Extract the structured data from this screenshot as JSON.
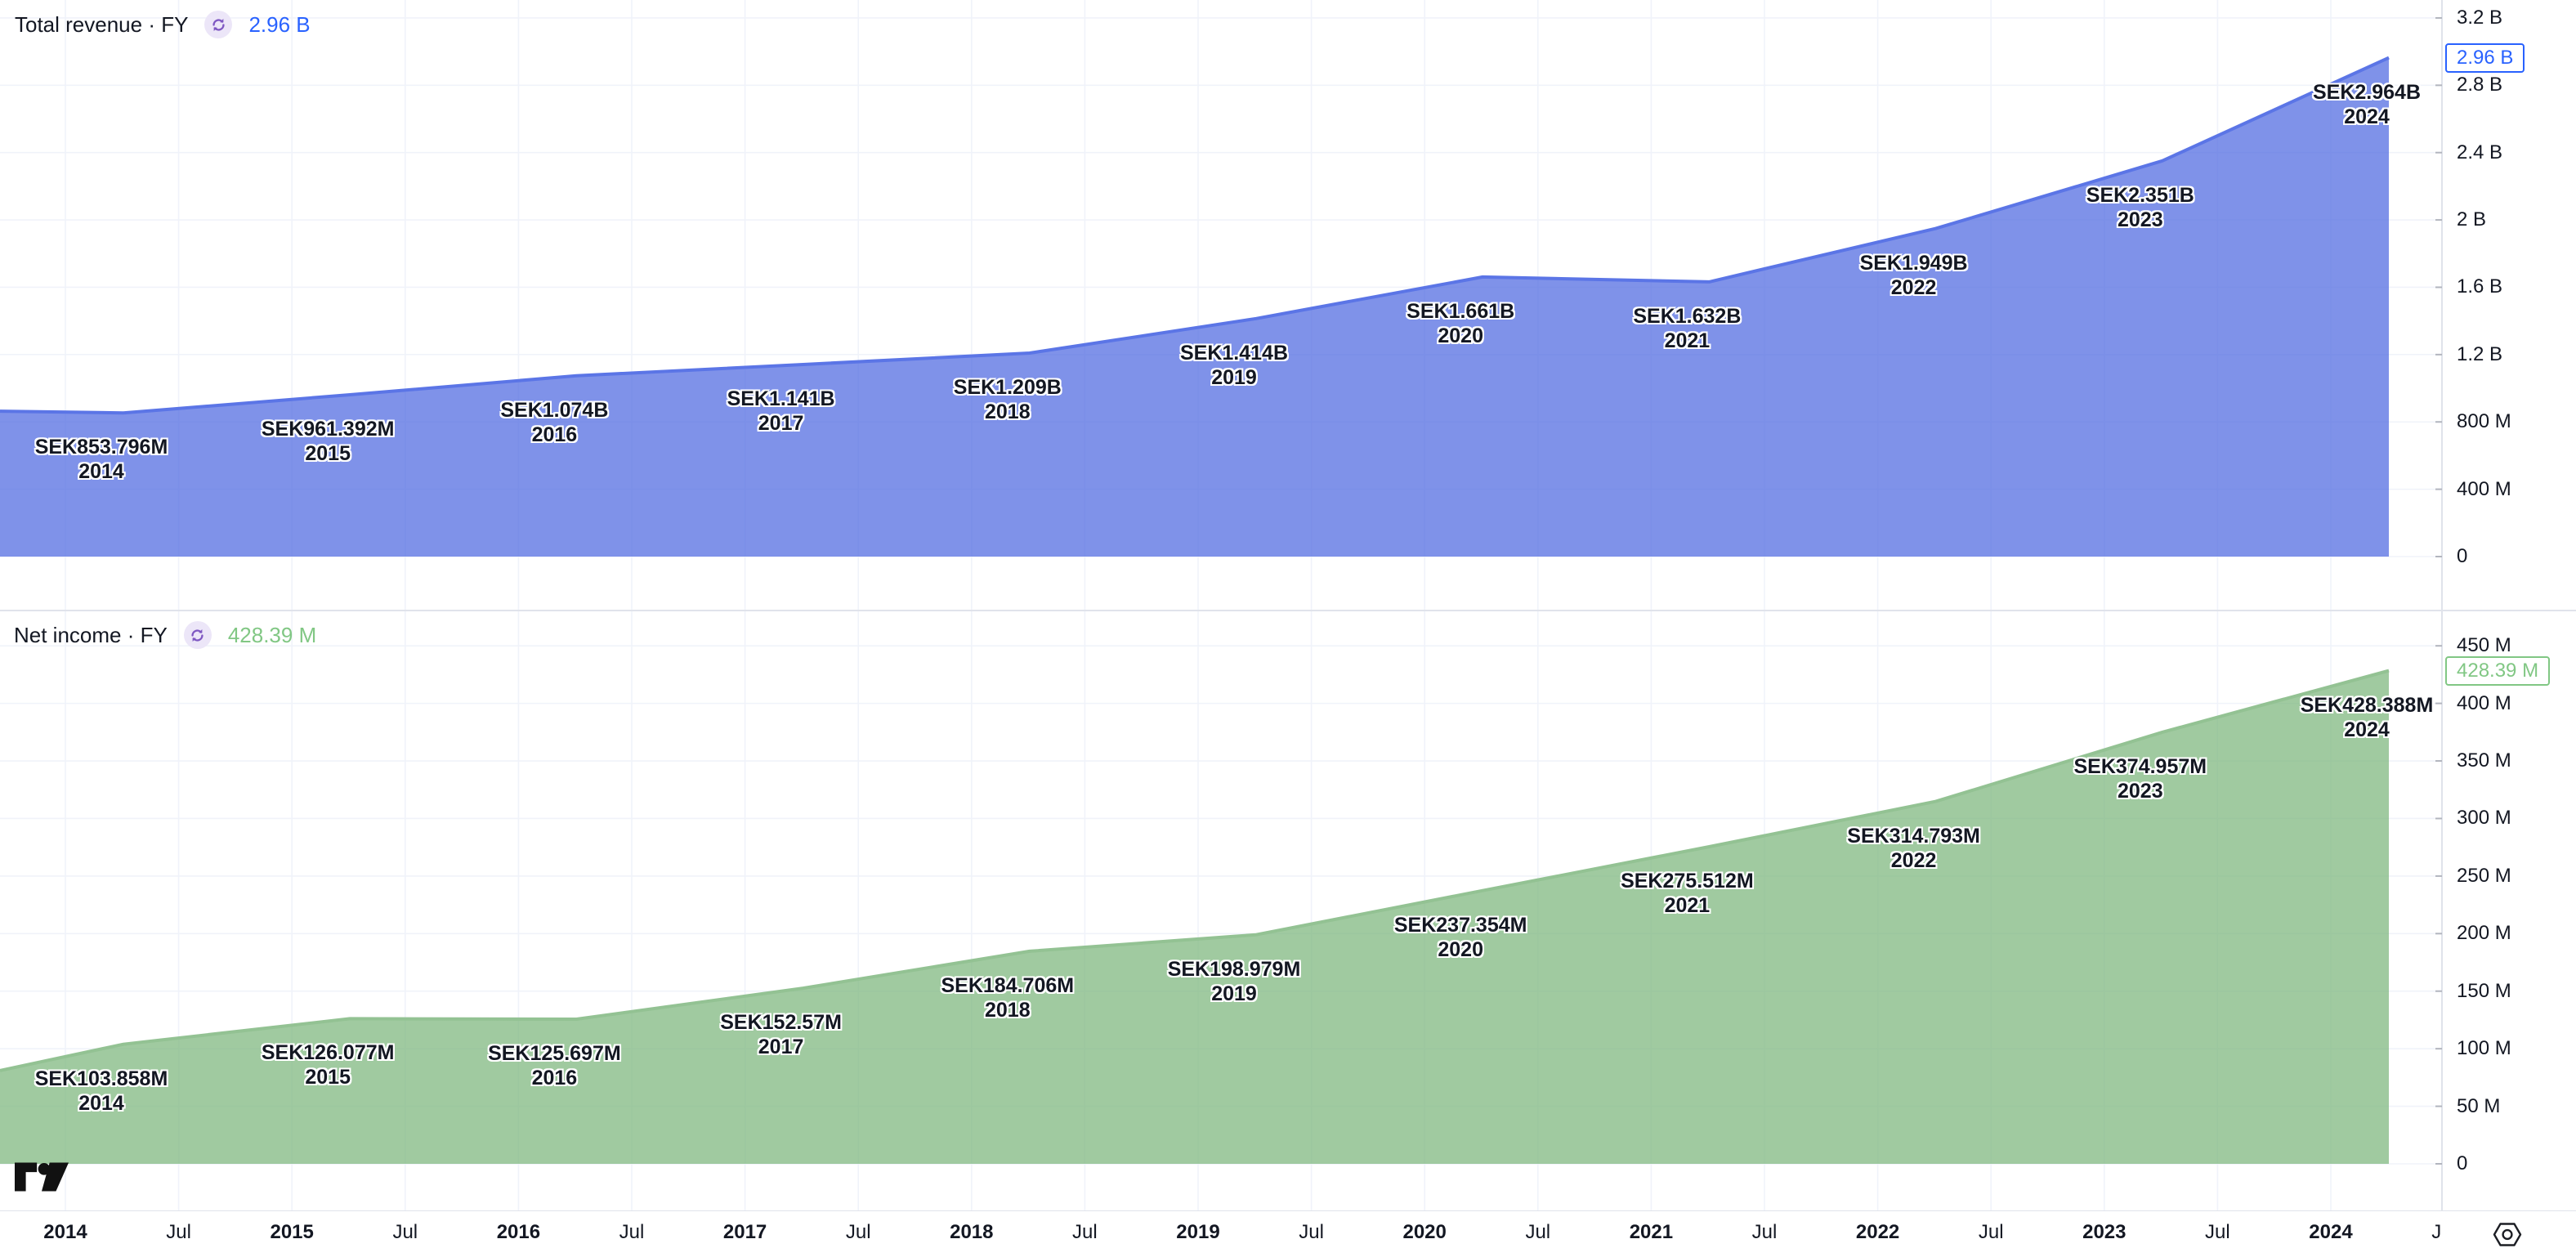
{
  "colors": {
    "background": "#ffffff",
    "grid": "#f0f3fa",
    "separator": "#e0e3eb",
    "axis_text": "#131722",
    "axis_tick": "#b2b5be",
    "annotation_text": "#131722",
    "annotation_halo": "#ffffff",
    "refresh_icon": "#7e57c2",
    "refresh_icon_bg": "#ece6f8",
    "logo": "#111111",
    "gear": "#1c1e24"
  },
  "panels": [
    {
      "title": "Total revenue · FY",
      "value": "2.96 B",
      "badge": "2.96 B"
    },
    {
      "title": "Net income · FY",
      "value": "428.39 M",
      "badge": "428.39 M"
    }
  ],
  "chart_data": [
    {
      "type": "area",
      "title": "Total revenue · FY",
      "unit": "SEK",
      "x_years": [
        2014,
        2015,
        2016,
        2017,
        2018,
        2019,
        2020,
        2021,
        2022,
        2023,
        2024
      ],
      "values_millions": [
        853.796,
        961.392,
        1074,
        1141,
        1209,
        1414,
        1661,
        1632,
        1949,
        2351,
        2964
      ],
      "point_labels": [
        "SEK853.796M",
        "SEK961.392M",
        "SEK1.074B",
        "SEK1.141B",
        "SEK1.209B",
        "SEK1.414B",
        "SEK1.661B",
        "SEK1.632B",
        "SEK1.949B",
        "SEK2.351B",
        "SEK2.964B"
      ],
      "left_edge_value_millions": 864,
      "current_value_badge": "2.96 B",
      "y_ticks": [
        {
          "label": "3.2 B",
          "value_millions": 3200
        },
        {
          "label": "2.8 B",
          "value_millions": 2800
        },
        {
          "label": "2.4 B",
          "value_millions": 2400
        },
        {
          "label": "2 B",
          "value_millions": 2000
        },
        {
          "label": "1.6 B",
          "value_millions": 1600
        },
        {
          "label": "1.2 B",
          "value_millions": 1200
        },
        {
          "label": "800 M",
          "value_millions": 800
        },
        {
          "label": "400 M",
          "value_millions": 400
        },
        {
          "label": "0",
          "value_millions": 0
        }
      ],
      "ylim_millions": [
        0,
        3627
      ],
      "grid": true,
      "legend_position": "top-left",
      "line_color": "#5b75e6",
      "fill_color": "rgba(78,104,224,0.72)",
      "accent_color": "#2962ff"
    },
    {
      "type": "area",
      "title": "Net income · FY",
      "unit": "SEK",
      "x_years": [
        2014,
        2015,
        2016,
        2017,
        2018,
        2019,
        2020,
        2021,
        2022,
        2023,
        2024
      ],
      "values_millions": [
        103.858,
        126.077,
        125.697,
        152.57,
        184.706,
        198.979,
        237.354,
        275.512,
        314.793,
        374.957,
        428.388
      ],
      "point_labels": [
        "SEK103.858M",
        "SEK126.077M",
        "SEK125.697M",
        "SEK152.57M",
        "SEK184.706M",
        "SEK198.979M",
        "SEK237.354M",
        "SEK275.512M",
        "SEK314.793M",
        "SEK374.957M",
        "SEK428.388M"
      ],
      "left_edge_value_millions": 81,
      "current_value_badge": "428.39 M",
      "y_ticks": [
        {
          "label": "450 M",
          "value_millions": 450
        },
        {
          "label": "400 M",
          "value_millions": 400
        },
        {
          "label": "350 M",
          "value_millions": 350
        },
        {
          "label": "300 M",
          "value_millions": 300
        },
        {
          "label": "250 M",
          "value_millions": 250
        },
        {
          "label": "200 M",
          "value_millions": 200
        },
        {
          "label": "150 M",
          "value_millions": 150
        },
        {
          "label": "100 M",
          "value_millions": 100
        },
        {
          "label": "50 M",
          "value_millions": 50
        },
        {
          "label": "0",
          "value_millions": 0
        }
      ],
      "ylim_millions": [
        0,
        522
      ],
      "grid": true,
      "legend_position": "top-left",
      "line_color": "#93c293",
      "fill_color": "rgba(124,181,123,0.72)",
      "accent_color": "#81c784"
    }
  ],
  "time_axis": {
    "labels": [
      "2014",
      "Jul",
      "2015",
      "Jul",
      "2016",
      "Jul",
      "2017",
      "Jul",
      "2018",
      "Jul",
      "2019",
      "Jul",
      "2020",
      "Jul",
      "2021",
      "Jul",
      "2022",
      "Jul",
      "2023",
      "Jul",
      "2024",
      "Jul"
    ]
  },
  "icons": {
    "panel_refresh": "sync-refresh-icon",
    "bottom_right": "scale-settings-gear-icon",
    "bottom_left": "tradingview-logo"
  }
}
